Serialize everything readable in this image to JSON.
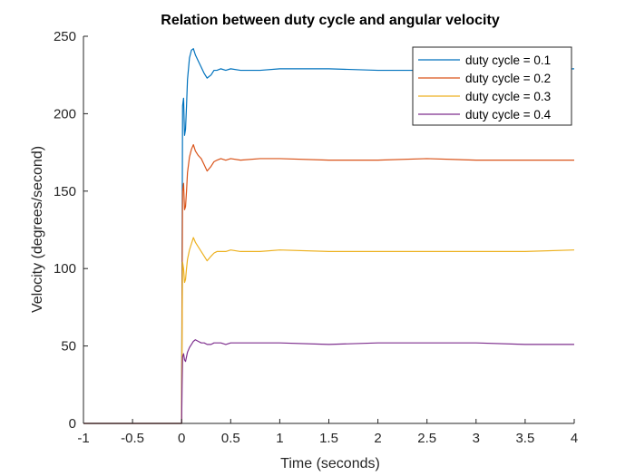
{
  "chart_data": {
    "type": "line",
    "title": "Relation between duty cycle and angular velocity",
    "xlabel": "Time (seconds)",
    "ylabel": "Velocity (degrees/second)",
    "xlim": [
      -1,
      4
    ],
    "ylim": [
      0,
      250
    ],
    "xticks": [
      -1,
      -0.5,
      0,
      0.5,
      1,
      1.5,
      2,
      2.5,
      3,
      3.5,
      4
    ],
    "xtick_labels": [
      "-1",
      "-0.5",
      "0",
      "0.5",
      "1",
      "1.5",
      "2",
      "2.5",
      "3",
      "3.5",
      "4"
    ],
    "yticks": [
      0,
      50,
      100,
      150,
      200,
      250
    ],
    "ytick_labels": [
      "0",
      "50",
      "100",
      "150",
      "200",
      "250"
    ],
    "grid": false,
    "legend_position": "top-right",
    "series": [
      {
        "name": "duty cycle = 0.1",
        "color": "#0072BD",
        "x": [
          -1,
          0,
          0.005,
          0.01,
          0.02,
          0.03,
          0.04,
          0.05,
          0.06,
          0.08,
          0.1,
          0.12,
          0.14,
          0.17,
          0.2,
          0.23,
          0.26,
          0.3,
          0.33,
          0.36,
          0.4,
          0.45,
          0.5,
          0.6,
          0.8,
          1,
          1.5,
          2,
          2.5,
          3,
          3.5,
          4
        ],
        "y": [
          0,
          0,
          110,
          205,
          210,
          186,
          190,
          205,
          222,
          236,
          241,
          242,
          238,
          234,
          230,
          226,
          223,
          225,
          228,
          228,
          229,
          228,
          229,
          228,
          228,
          229,
          229,
          228,
          228,
          228,
          228,
          229
        ]
      },
      {
        "name": "duty cycle = 0.2",
        "color": "#D95319",
        "x": [
          -1,
          0,
          0.005,
          0.01,
          0.02,
          0.03,
          0.04,
          0.05,
          0.06,
          0.08,
          0.1,
          0.12,
          0.14,
          0.17,
          0.2,
          0.23,
          0.26,
          0.3,
          0.33,
          0.36,
          0.4,
          0.45,
          0.5,
          0.6,
          0.8,
          1,
          1.5,
          2,
          2.5,
          3,
          3.5,
          4
        ],
        "y": [
          0,
          0,
          85,
          150,
          155,
          138,
          140,
          150,
          162,
          172,
          177,
          180,
          176,
          173,
          171,
          167,
          163,
          166,
          169,
          170,
          171,
          170,
          171,
          170,
          171,
          171,
          170,
          170,
          171,
          170,
          170,
          170
        ]
      },
      {
        "name": "duty cycle = 0.3",
        "color": "#EDB120",
        "x": [
          -1,
          0,
          0.005,
          0.01,
          0.02,
          0.03,
          0.04,
          0.05,
          0.06,
          0.08,
          0.1,
          0.12,
          0.14,
          0.17,
          0.2,
          0.23,
          0.26,
          0.3,
          0.33,
          0.36,
          0.4,
          0.45,
          0.5,
          0.6,
          0.8,
          1,
          1.5,
          2,
          2.5,
          3,
          3.5,
          4
        ],
        "y": [
          0,
          0,
          60,
          104,
          100,
          91,
          93,
          100,
          106,
          112,
          116,
          120,
          117,
          114,
          111,
          108,
          105,
          108,
          110,
          111,
          111,
          111,
          112,
          111,
          111,
          112,
          111,
          111,
          111,
          111,
          111,
          112
        ]
      },
      {
        "name": "duty cycle = 0.4",
        "color": "#7E2F8E",
        "x": [
          -1,
          0,
          0.005,
          0.01,
          0.02,
          0.03,
          0.04,
          0.05,
          0.06,
          0.08,
          0.1,
          0.12,
          0.14,
          0.17,
          0.2,
          0.23,
          0.26,
          0.3,
          0.33,
          0.36,
          0.4,
          0.45,
          0.5,
          0.6,
          0.8,
          1,
          1.5,
          2,
          2.5,
          3,
          3.5,
          4
        ],
        "y": [
          0,
          0,
          25,
          43,
          45,
          41,
          40,
          43,
          46,
          49,
          51,
          53,
          54,
          53,
          52,
          52,
          51,
          51,
          52,
          52,
          52,
          51,
          52,
          52,
          52,
          52,
          51,
          52,
          52,
          52,
          51,
          51
        ]
      }
    ]
  }
}
